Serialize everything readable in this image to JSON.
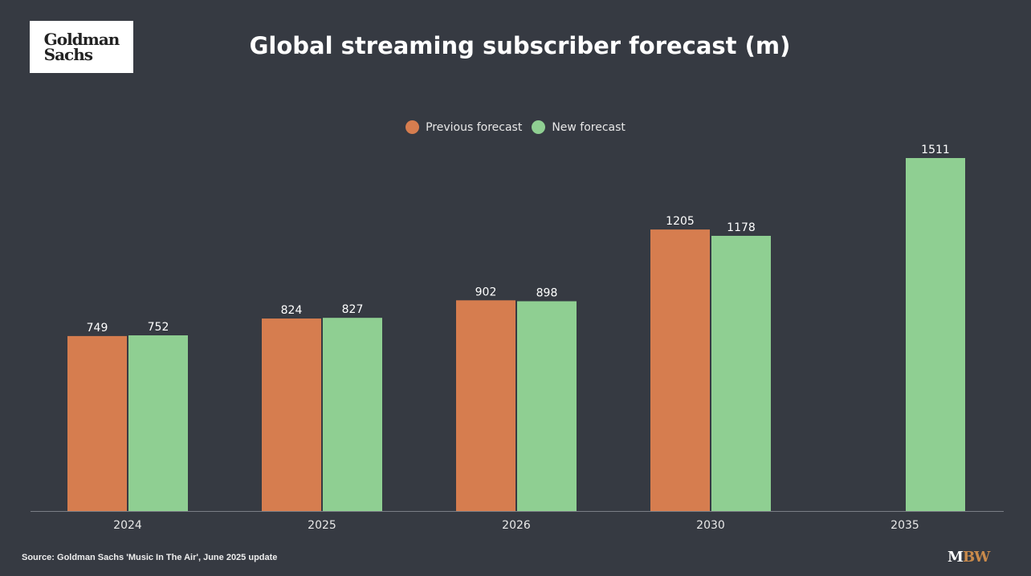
{
  "logo": {
    "line1": "Goldman",
    "line2": "Sachs"
  },
  "source": "Source: Goldman Sachs 'Music In The Air', June 2025 update",
  "brand": {
    "m": "M",
    "bw": "BW"
  },
  "colors": {
    "background": "#363a42",
    "previous": "#d67d4f",
    "new": "#8fcf92",
    "brand_accent": "#c98a4b"
  },
  "chart_data": {
    "type": "bar",
    "title": "Global streaming subscriber forecast (m)",
    "categories": [
      "2024",
      "2025",
      "2026",
      "2030",
      "2035"
    ],
    "series": [
      {
        "name": "Previous forecast",
        "values": [
          749,
          824,
          902,
          1205,
          null
        ],
        "color": "#d67d4f"
      },
      {
        "name": "New forecast",
        "values": [
          752,
          827,
          898,
          1178,
          1511
        ],
        "color": "#8fcf92"
      }
    ],
    "ylim": [
      0,
      1511
    ],
    "grid": false,
    "legend": "top-center",
    "xlabel": "",
    "ylabel": ""
  }
}
